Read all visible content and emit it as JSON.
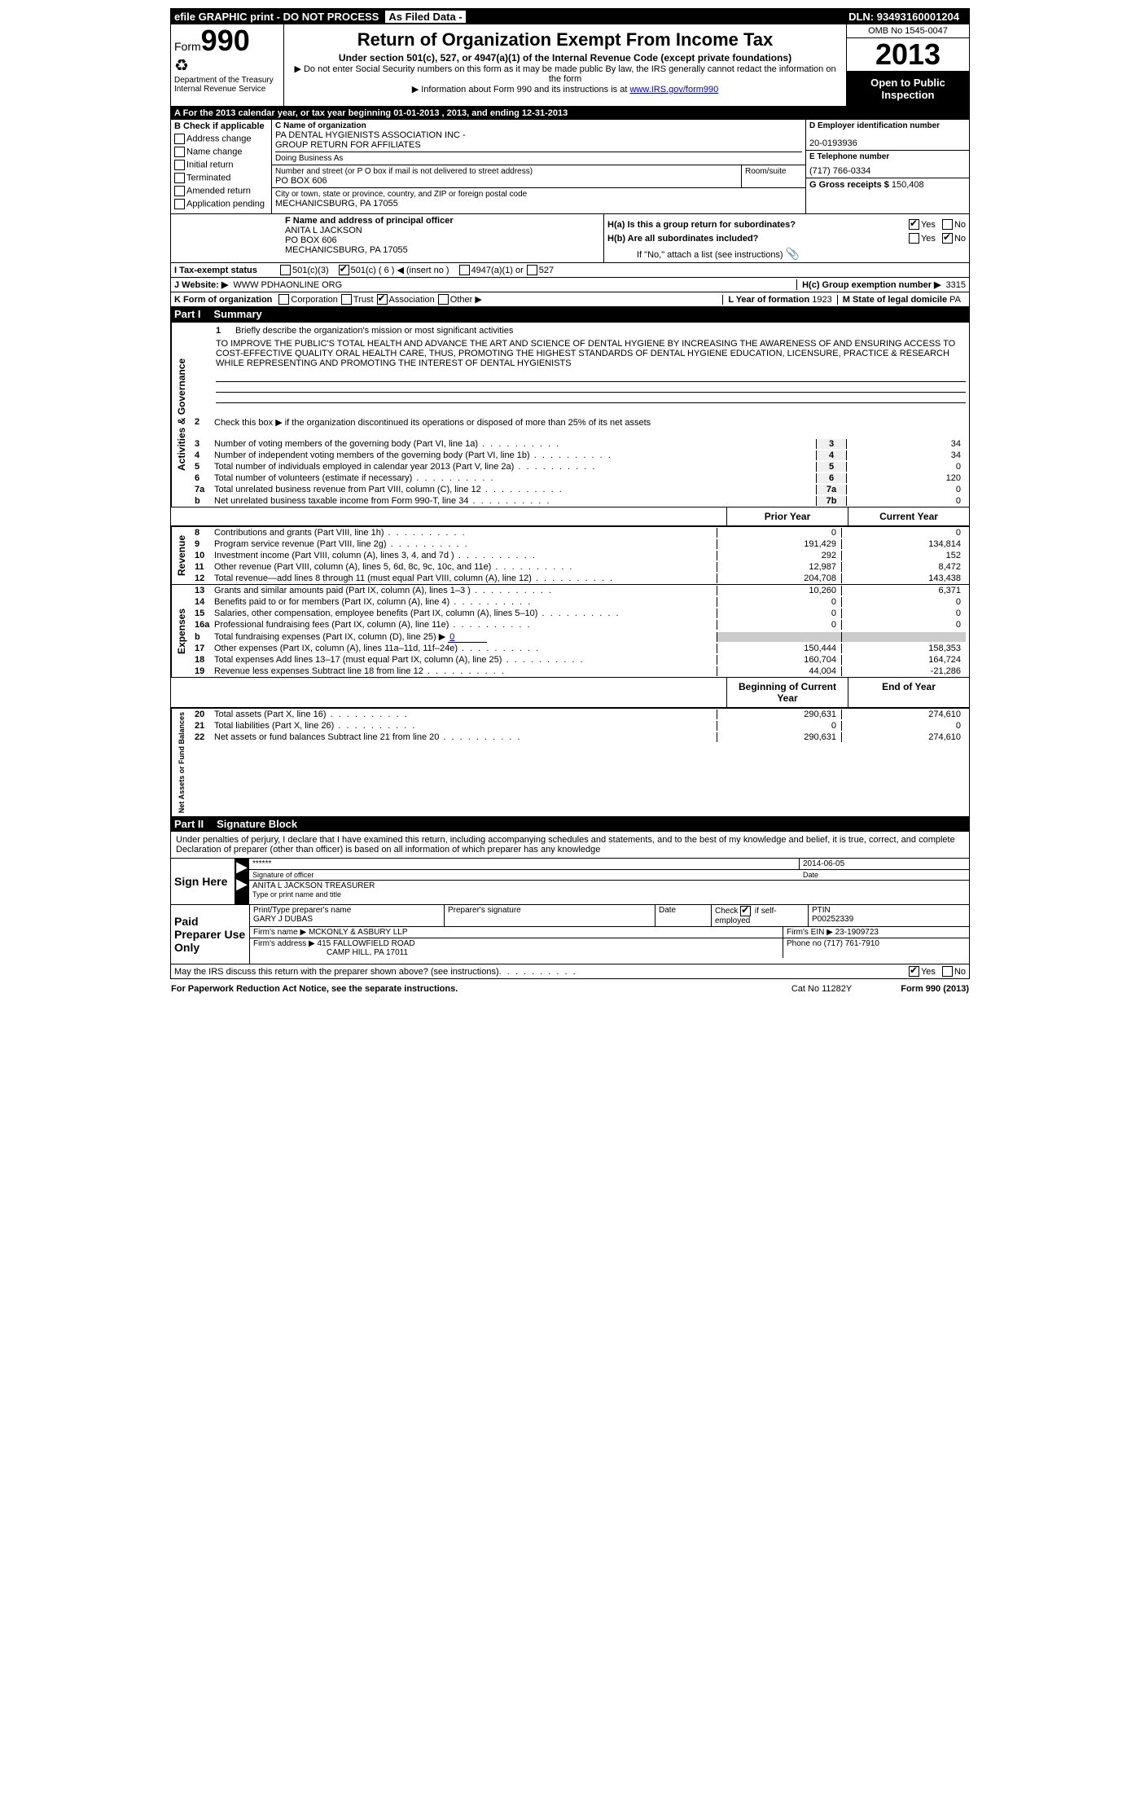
{
  "topbar": {
    "efile": "efile GRAPHIC print - DO NOT PROCESS",
    "asfiled": "As Filed Data -",
    "dln_label": "DLN:",
    "dln": "93493160001204"
  },
  "header": {
    "form": "Form",
    "form_num": "990",
    "dept1": "Department of the Treasury",
    "dept2": "Internal Revenue Service",
    "title": "Return of Organization Exempt From Income Tax",
    "sub": "Under section 501(c), 527, or 4947(a)(1) of the Internal Revenue Code (except private foundations)",
    "line1": "▶ Do not enter Social Security numbers on this form as it may be made public  By law, the IRS generally cannot redact the information on the form",
    "line2_pre": "▶ Information about Form 990 and its instructions is at ",
    "line2_link": "www.IRS.gov/form990",
    "omb": "OMB No  1545-0047",
    "year": "2013",
    "open": "Open to Public Inspection"
  },
  "rowA": "A  For the 2013 calendar year, or tax year beginning 01-01-2013     , 2013, and ending 12-31-2013",
  "sectionB": {
    "label": "B  Check if applicable",
    "opts": [
      "Address change",
      "Name change",
      "Initial return",
      "Terminated",
      "Amended return",
      "Application pending"
    ]
  },
  "sectionC": {
    "name_label": "C Name of organization",
    "name1": "PA DENTAL HYGIENISTS ASSOCIATION INC -",
    "name2": "GROUP RETURN FOR AFFILIATES",
    "dba_label": "Doing Business As",
    "street_label": "Number and street (or P O  box if mail is not delivered to street address)",
    "room_label": "Room/suite",
    "street": "PO BOX 606",
    "city_label": "City or town, state or province, country, and ZIP or foreign postal code",
    "city": "MECHANICSBURG, PA  17055"
  },
  "sectionD": {
    "ein_label": "D Employer identification number",
    "ein": "20-0193936",
    "tel_label": "E Telephone number",
    "tel": "(717) 766-0334",
    "gross_label": "G Gross receipts $",
    "gross": "150,408"
  },
  "sectionF": {
    "label": "F    Name and address of principal officer",
    "name": "ANITA L JACKSON",
    "addr1": "PO BOX 606",
    "addr2": "MECHANICSBURG, PA  17055"
  },
  "sectionH": {
    "ha": "H(a)  Is this a group return for subordinates?",
    "hb": "H(b)  Are all subordinates included?",
    "hb_note": "If \"No,\" attach a list  (see instructions)",
    "hc": "H(c)   Group exemption number ▶",
    "hc_val": "3315",
    "yes": "Yes",
    "no": "No"
  },
  "rowI": {
    "label": "I    Tax-exempt status",
    "o1": "501(c)(3)",
    "o2": "501(c) ( 6 ) ◀ (insert no )",
    "o3": "4947(a)(1) or",
    "o4": "527"
  },
  "rowJ": {
    "label": "J   Website: ▶",
    "val": "WWW PDHAONLINE ORG"
  },
  "rowK": {
    "label": "K Form of organization",
    "o1": "Corporation",
    "o2": "Trust",
    "o3": "Association",
    "o4": "Other ▶",
    "l_label": "L Year of formation",
    "l_val": "1923",
    "m_label": "M State of legal domicile",
    "m_val": "PA"
  },
  "part1": {
    "num": "Part I",
    "title": "Summary"
  },
  "gov": {
    "tab": "Activities & Governance",
    "l1": "Briefly describe the organization's mission or most significant activities",
    "mission": "TO IMPROVE THE PUBLIC'S TOTAL HEALTH AND ADVANCE THE ART AND SCIENCE OF DENTAL HYGIENE BY INCREASING THE AWARENESS OF AND ENSURING ACCESS TO COST-EFFECTIVE QUALITY ORAL HEALTH CARE, THUS, PROMOTING THE HIGHEST STANDARDS OF DENTAL HYGIENE EDUCATION, LICENSURE, PRACTICE & RESEARCH WHILE REPRESENTING AND PROMOTING THE INTEREST OF DENTAL HYGIENISTS",
    "l2": "Check this box ▶     if the organization discontinued its operations or disposed of more than 25% of its net assets",
    "l3": "Number of voting members of the governing body (Part VI, line 1a)",
    "l3v": "34",
    "l4": "Number of independent voting members of the governing body (Part VI, line 1b)",
    "l4v": "34",
    "l5": "Total number of individuals employed in calendar year 2013 (Part V, line 2a)",
    "l5v": "0",
    "l6": "Total number of volunteers (estimate if necessary)",
    "l6v": "120",
    "l7a": "Total unrelated business revenue from Part VIII, column (C), line 12",
    "l7av": "0",
    "l7b": "Net unrelated business taxable income from Form 990-T, line 34",
    "l7bv": "0"
  },
  "colheaders": {
    "prior": "Prior Year",
    "current": "Current Year",
    "begin": "Beginning of Current Year",
    "end": "End of Year"
  },
  "rev": {
    "tab": "Revenue",
    "lines": [
      {
        "n": "8",
        "d": "Contributions and grants (Part VIII, line 1h)",
        "p": "0",
        "c": "0"
      },
      {
        "n": "9",
        "d": "Program service revenue (Part VIII, line 2g)",
        "p": "191,429",
        "c": "134,814"
      },
      {
        "n": "10",
        "d": "Investment income (Part VIII, column (A), lines 3, 4, and 7d )",
        "p": "292",
        "c": "152"
      },
      {
        "n": "11",
        "d": "Other revenue (Part VIII, column (A), lines 5, 6d, 8c, 9c, 10c, and 11e)",
        "p": "12,987",
        "c": "8,472"
      },
      {
        "n": "12",
        "d": "Total revenue—add lines 8 through 11 (must equal Part VIII, column (A), line 12)",
        "p": "204,708",
        "c": "143,438"
      }
    ]
  },
  "exp": {
    "tab": "Expenses",
    "lines": [
      {
        "n": "13",
        "d": "Grants and similar amounts paid (Part IX, column (A), lines 1–3 )",
        "p": "10,260",
        "c": "6,371"
      },
      {
        "n": "14",
        "d": "Benefits paid to or for members (Part IX, column (A), line 4)",
        "p": "0",
        "c": "0"
      },
      {
        "n": "15",
        "d": "Salaries, other compensation, employee benefits (Part IX, column (A), lines 5–10)",
        "p": "0",
        "c": "0"
      },
      {
        "n": "16a",
        "d": "Professional fundraising fees (Part IX, column (A), line 11e)",
        "p": "0",
        "c": "0"
      }
    ],
    "l16b_pre": "Total fundraising expenses (Part IX, column (D), line 25) ▶",
    "l16b_val": "0",
    "lines2": [
      {
        "n": "17",
        "d": "Other expenses (Part IX, column (A), lines 11a–11d, 11f–24e)",
        "p": "150,444",
        "c": "158,353"
      },
      {
        "n": "18",
        "d": "Total expenses  Add lines 13–17 (must equal Part IX, column (A), line 25)",
        "p": "160,704",
        "c": "164,724"
      },
      {
        "n": "19",
        "d": "Revenue less expenses  Subtract line 18 from line 12",
        "p": "44,004",
        "c": "-21,286"
      }
    ]
  },
  "net": {
    "tab": "Net Assets or Fund Balances",
    "lines": [
      {
        "n": "20",
        "d": "Total assets (Part X, line 16)",
        "p": "290,631",
        "c": "274,610"
      },
      {
        "n": "21",
        "d": "Total liabilities (Part X, line 26)",
        "p": "0",
        "c": "0"
      },
      {
        "n": "22",
        "d": "Net assets or fund balances  Subtract line 21 from line 20",
        "p": "290,631",
        "c": "274,610"
      }
    ]
  },
  "part2": {
    "num": "Part II",
    "title": "Signature Block"
  },
  "sig": {
    "text": "Under penalties of perjury, I declare that I have examined this return, including accompanying schedules and statements, and to the best of my knowledge and belief, it is true, correct, and complete  Declaration of preparer (other than officer) is based on all information of which preparer has any knowledge",
    "sign_here": "Sign Here",
    "stars": "******",
    "sig_label": "Signature of officer",
    "date_label": "Date",
    "date": "2014-06-05",
    "name": "ANITA L JACKSON TREASURER",
    "name_label": "Type or print name and title"
  },
  "prep": {
    "label": "Paid Preparer Use Only",
    "h1": "Print/Type preparer's name",
    "h2": "Preparer's signature",
    "h3": "Date",
    "h4_pre": "Check",
    "h4_post": "if self-employed",
    "h5": "PTIN",
    "name": "GARY J DUBAS",
    "ptin": "P00252339",
    "firm_label": "Firm's name      ▶",
    "firm": "MCKONLY & ASBURY LLP",
    "ein_label": "Firm's EIN ▶",
    "ein": "23-1909723",
    "addr_label": "Firm's address  ▶",
    "addr1": "415 FALLOWFIELD ROAD",
    "addr2": "CAMP HILL, PA  17011",
    "phone_label": "Phone no",
    "phone": "(717) 761-7910"
  },
  "discuss": {
    "text": "May the IRS discuss this return with the preparer shown above? (see instructions)",
    "yes": "Yes",
    "no": "No"
  },
  "footer": {
    "left": "For Paperwork Reduction Act Notice, see the separate instructions.",
    "center": "Cat No  11282Y",
    "right": "Form 990 (2013)"
  }
}
